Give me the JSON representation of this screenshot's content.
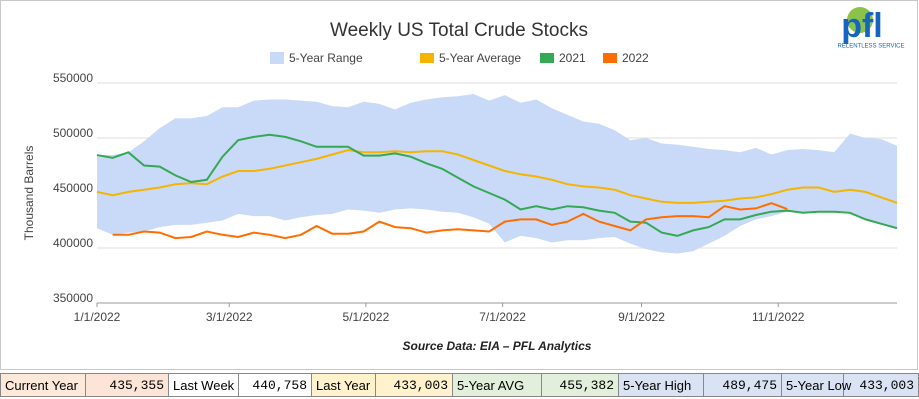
{
  "chart_data": {
    "type": "line",
    "title": "Weekly US Total Crude Stocks",
    "y_label": "Thousand Barrels",
    "source": "Source Data: EIA – PFL Analytics",
    "x": [
      "1/1/2022",
      "1/8/2022",
      "1/15/2022",
      "1/22/2022",
      "1/29/2022",
      "2/5/2022",
      "2/12/2022",
      "2/19/2022",
      "2/26/2022",
      "3/5/2022",
      "3/12/2022",
      "3/19/2022",
      "3/26/2022",
      "4/2/2022",
      "4/9/2022",
      "4/16/2022",
      "4/23/2022",
      "4/30/2022",
      "5/7/2022",
      "5/14/2022",
      "5/21/2022",
      "5/28/2022",
      "6/4/2022",
      "6/11/2022",
      "6/18/2022",
      "6/25/2022",
      "7/2/2022",
      "7/9/2022",
      "7/16/2022",
      "7/23/2022",
      "7/30/2022",
      "8/6/2022",
      "8/13/2022",
      "8/20/2022",
      "8/27/2022",
      "9/3/2022",
      "9/10/2022",
      "9/17/2022",
      "9/24/2022",
      "10/1/2022",
      "10/8/2022",
      "10/15/2022",
      "10/22/2022",
      "10/29/2022",
      "11/5/2022",
      "11/12/2022",
      "11/19/2022",
      "11/26/2022",
      "12/3/2022",
      "12/10/2022",
      "12/17/2022",
      "12/24/2022"
    ],
    "xlim": [
      "1/1/2022",
      "12/24/2022"
    ],
    "xticks": [
      "1/1/2022",
      "3/1/2022",
      "5/1/2022",
      "7/1/2022",
      "9/1/2022",
      "11/1/2022"
    ],
    "ylim": [
      350000,
      550000
    ],
    "yticks": [
      350000,
      400000,
      450000,
      500000,
      550000
    ],
    "grid": true,
    "series": [
      {
        "name": "5-Year Range",
        "kind": "range",
        "color": "#c9daf8",
        "high": [
          484500,
          484500,
          487000,
          497000,
          509000,
          518000,
          518000,
          520000,
          528000,
          528000,
          534000,
          535000,
          535000,
          534000,
          533000,
          529000,
          528000,
          533000,
          531000,
          526000,
          532000,
          535000,
          537000,
          538000,
          540000,
          534000,
          539000,
          532000,
          535000,
          527000,
          521000,
          515000,
          513000,
          507000,
          498000,
          500000,
          495000,
          494000,
          492000,
          490000,
          489000,
          487000,
          491000,
          485000,
          489000,
          490000,
          489000,
          487000,
          504000,
          500000,
          499000,
          493000
        ],
        "low": [
          418000,
          412000,
          414000,
          415000,
          419000,
          421000,
          421000,
          423000,
          425000,
          431000,
          429000,
          429000,
          425000,
          428000,
          430000,
          431000,
          435000,
          434000,
          432000,
          435000,
          436000,
          435000,
          433000,
          432000,
          428000,
          422000,
          405000,
          411000,
          409000,
          405000,
          407000,
          407000,
          409000,
          410000,
          404000,
          399000,
          396000,
          395000,
          397000,
          404000,
          411000,
          420000,
          426000,
          429000,
          433000,
          432000,
          433000,
          433000,
          432000,
          426000,
          422000,
          418000
        ]
      },
      {
        "name": "5-Year Average",
        "color": "#f4b400",
        "values": [
          451000,
          448000,
          451000,
          453000,
          455000,
          458000,
          459000,
          458000,
          465000,
          470000,
          470000,
          472000,
          475000,
          478000,
          481000,
          485000,
          489000,
          487000,
          487000,
          488000,
          487000,
          488000,
          488000,
          485000,
          480000,
          475000,
          470000,
          467000,
          465000,
          462000,
          458000,
          456000,
          455000,
          453000,
          448000,
          445000,
          442000,
          441000,
          441000,
          442000,
          443000,
          445000,
          446000,
          449000,
          453000,
          455000,
          455000,
          451000,
          453000,
          451000,
          446000,
          441000
        ]
      },
      {
        "name": "2021",
        "color": "#34a853",
        "values": [
          484500,
          482000,
          487000,
          475000,
          474000,
          466000,
          460000,
          462000,
          483000,
          498000,
          501000,
          503000,
          501000,
          497000,
          492000,
          492000,
          492000,
          484000,
          484000,
          486000,
          483000,
          477000,
          472000,
          464000,
          456000,
          450000,
          444000,
          435000,
          438000,
          435000,
          438000,
          437000,
          434000,
          432000,
          424000,
          423000,
          414000,
          411000,
          416000,
          419000,
          426000,
          426000,
          430000,
          433000,
          434000,
          432000,
          433000,
          433000,
          432000,
          426000,
          422000,
          418000
        ]
      },
      {
        "name": "2022",
        "color": "#ff6d01",
        "values": [
          null,
          412000,
          412000,
          415000,
          414000,
          409000,
          410000,
          415000,
          412000,
          410000,
          414000,
          412000,
          409000,
          412000,
          420000,
          413000,
          413000,
          415000,
          424000,
          419000,
          418000,
          414000,
          416000,
          417000,
          416000,
          415000,
          424000,
          426000,
          426000,
          421000,
          424000,
          431000,
          424000,
          420000,
          416000,
          426000,
          428000,
          429000,
          429000,
          428000,
          438000,
          435000,
          436000,
          440758,
          435355,
          null,
          null,
          null,
          null,
          null,
          null,
          null
        ]
      }
    ]
  },
  "logo": {
    "mark": "pfl",
    "tagline": "RELENTLESS SERVICE"
  },
  "summary": [
    {
      "label": "Current Year",
      "value": "435,355"
    },
    {
      "label": "Last Week",
      "value": "440,758"
    },
    {
      "label": "Last Year",
      "value": "433,003"
    },
    {
      "label": "5-Year AVG",
      "value": "455,382"
    },
    {
      "label": "5-Year High",
      "value": "489,475"
    },
    {
      "label": "5-Year Low",
      "value": "433,003"
    }
  ]
}
